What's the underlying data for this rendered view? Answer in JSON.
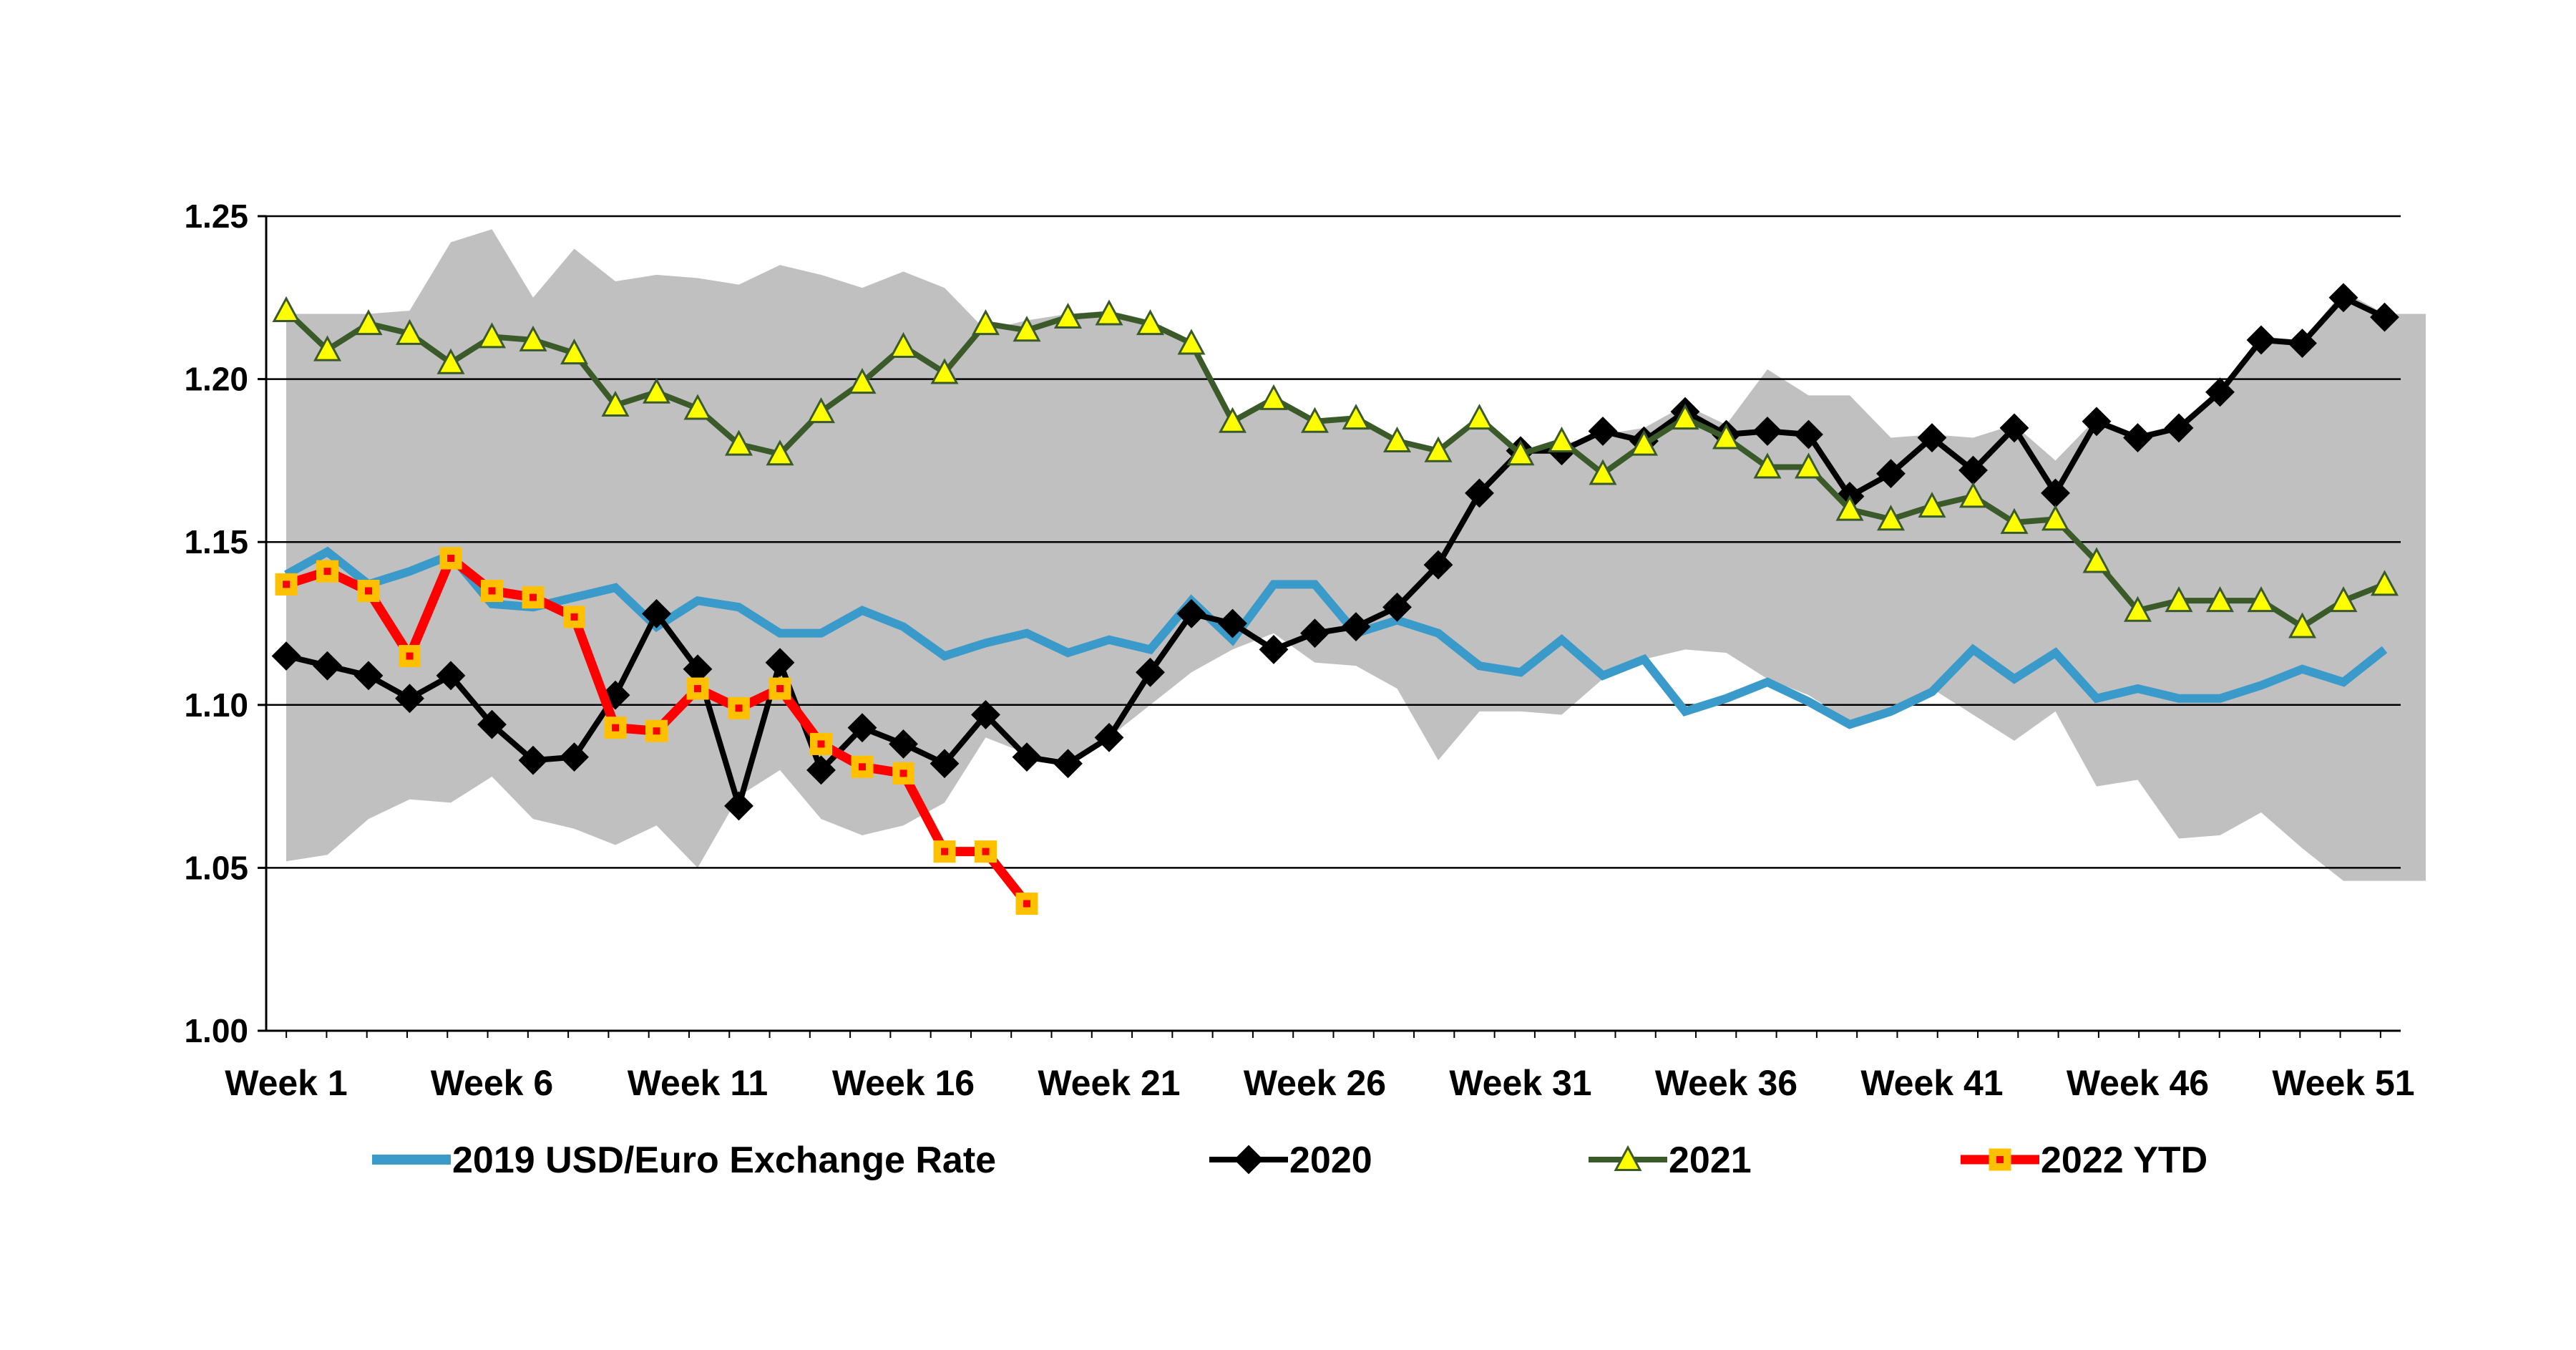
{
  "chart_data": {
    "type": "line",
    "title": "",
    "xlabel": "",
    "ylabel": "",
    "ylim": [
      1.0,
      1.25
    ],
    "yticks": [
      1.0,
      1.05,
      1.1,
      1.15,
      1.2,
      1.25
    ],
    "ytick_labels": [
      "1.00",
      "1.05",
      "1.10",
      "1.15",
      "1.20",
      "1.25"
    ],
    "grid": "horizontal",
    "x_count": 53,
    "xticks": [
      {
        "week": 1,
        "label": "Week 1"
      },
      {
        "week": 6,
        "label": "Week 6"
      },
      {
        "week": 11,
        "label": "Week 11"
      },
      {
        "week": 16,
        "label": "Week 16"
      },
      {
        "week": 21,
        "label": "Week 21"
      },
      {
        "week": 26,
        "label": "Week 26"
      },
      {
        "week": 31,
        "label": "Week 31"
      },
      {
        "week": 36,
        "label": "Week 36"
      },
      {
        "week": 41,
        "label": "Week 41"
      },
      {
        "week": 46,
        "label": "Week 46"
      },
      {
        "week": 51,
        "label": "Week 51"
      }
    ],
    "range_band": {
      "name": "Historical range",
      "color": "#c0c0c0",
      "upper": [
        1.22,
        1.22,
        1.22,
        1.221,
        1.242,
        1.246,
        1.225,
        1.24,
        1.23,
        1.232,
        1.231,
        1.229,
        1.235,
        1.232,
        1.228,
        1.233,
        1.228,
        1.215,
        1.218,
        1.22,
        1.221,
        1.218,
        1.21,
        1.187,
        1.193,
        1.187,
        1.188,
        1.181,
        1.178,
        1.188,
        1.178,
        1.18,
        1.183,
        1.185,
        1.192,
        1.186,
        1.203,
        1.195,
        1.195,
        1.182,
        1.183,
        1.182,
        1.186,
        1.175,
        1.188,
        1.183,
        1.186,
        1.197,
        1.213,
        1.212,
        1.227,
        1.22,
        1.22
      ],
      "lower": [
        1.052,
        1.054,
        1.065,
        1.071,
        1.07,
        1.078,
        1.065,
        1.062,
        1.057,
        1.063,
        1.05,
        1.072,
        1.08,
        1.065,
        1.06,
        1.063,
        1.07,
        1.09,
        1.085,
        1.083,
        1.09,
        1.1,
        1.11,
        1.117,
        1.122,
        1.113,
        1.112,
        1.105,
        1.083,
        1.098,
        1.098,
        1.097,
        1.108,
        1.114,
        1.117,
        1.116,
        1.108,
        1.103,
        1.095,
        1.099,
        1.105,
        1.097,
        1.089,
        1.098,
        1.075,
        1.077,
        1.059,
        1.06,
        1.067,
        1.056,
        1.046,
        1.046,
        1.046
      ]
    },
    "series": [
      {
        "name": "2019 USD/Euro Exchange Rate",
        "color": "#3a9ac9",
        "marker": "none",
        "values": [
          1.14,
          1.147,
          1.137,
          1.141,
          1.146,
          1.131,
          1.13,
          1.133,
          1.136,
          1.124,
          1.132,
          1.13,
          1.122,
          1.122,
          1.129,
          1.124,
          1.115,
          1.119,
          1.122,
          1.116,
          1.12,
          1.117,
          1.132,
          1.12,
          1.137,
          1.137,
          1.122,
          1.126,
          1.122,
          1.112,
          1.11,
          1.12,
          1.109,
          1.114,
          1.098,
          1.102,
          1.107,
          1.101,
          1.094,
          1.098,
          1.104,
          1.117,
          1.108,
          1.116,
          1.102,
          1.105,
          1.102,
          1.102,
          1.106,
          1.111,
          1.107,
          1.117
        ]
      },
      {
        "name": "2020",
        "color": "#000000",
        "marker": "diamond",
        "values": [
          1.115,
          1.112,
          1.109,
          1.102,
          1.109,
          1.094,
          1.083,
          1.084,
          1.103,
          1.128,
          1.111,
          1.069,
          1.113,
          1.08,
          1.093,
          1.088,
          1.082,
          1.097,
          1.084,
          1.082,
          1.09,
          1.11,
          1.128,
          1.125,
          1.117,
          1.122,
          1.124,
          1.13,
          1.143,
          1.165,
          1.178,
          1.178,
          1.184,
          1.181,
          1.19,
          1.183,
          1.184,
          1.183,
          1.164,
          1.171,
          1.182,
          1.172,
          1.185,
          1.165,
          1.187,
          1.182,
          1.185,
          1.196,
          1.212,
          1.211,
          1.225,
          1.219
        ]
      },
      {
        "name": "2021",
        "color": "#3b5a2a",
        "marker": "triangle",
        "marker_fill": "#ffff00",
        "values": [
          1.221,
          1.209,
          1.217,
          1.214,
          1.205,
          1.213,
          1.212,
          1.208,
          1.192,
          1.196,
          1.191,
          1.18,
          1.177,
          1.19,
          1.199,
          1.21,
          1.202,
          1.217,
          1.215,
          1.219,
          1.22,
          1.217,
          1.211,
          1.187,
          1.194,
          1.187,
          1.188,
          1.181,
          1.178,
          1.188,
          1.177,
          1.181,
          1.171,
          1.18,
          1.188,
          1.182,
          1.173,
          1.173,
          1.16,
          1.157,
          1.161,
          1.164,
          1.156,
          1.157,
          1.144,
          1.129,
          1.132,
          1.132,
          1.132,
          1.124,
          1.132,
          1.137
        ]
      },
      {
        "name": "2022 YTD",
        "color": "#ff0000",
        "marker": "square",
        "marker_fill": "#ffc000",
        "values": [
          1.137,
          1.141,
          1.135,
          1.115,
          1.145,
          1.135,
          1.133,
          1.127,
          1.093,
          1.092,
          1.105,
          1.099,
          1.105,
          1.088,
          1.081,
          1.079,
          1.055,
          1.055,
          1.039
        ]
      }
    ],
    "legend": {
      "placement": "bottom",
      "entries": [
        "2019 USD/Euro Exchange Rate",
        "2020",
        "2021",
        "2022 YTD"
      ]
    }
  }
}
